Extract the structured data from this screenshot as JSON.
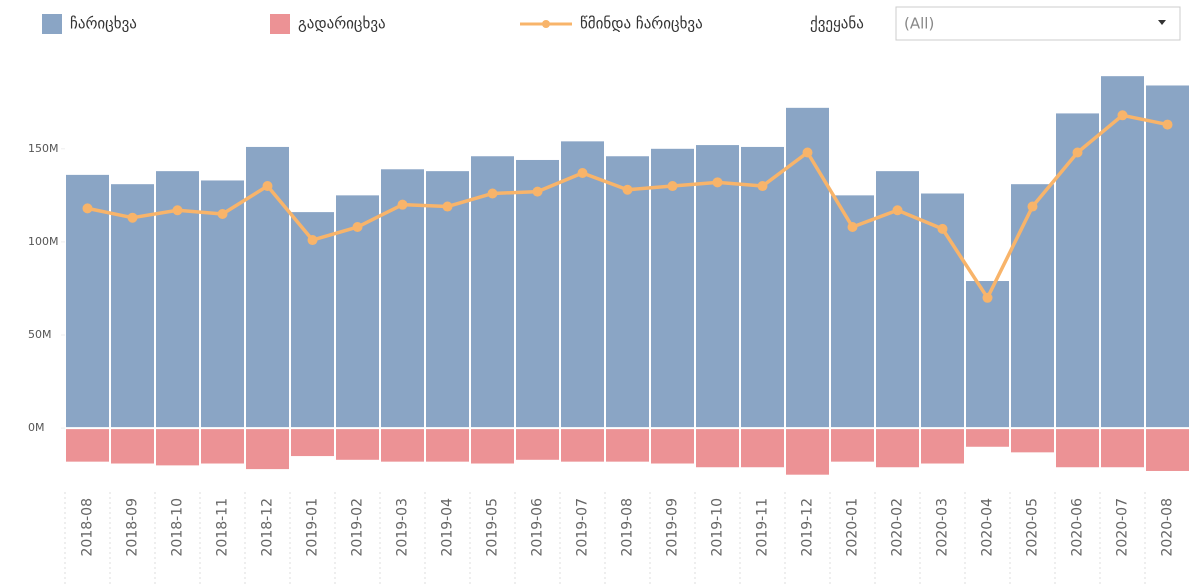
{
  "chart_data": {
    "type": "bar",
    "categories": [
      "2018-08",
      "2018-09",
      "2018-10",
      "2018-11",
      "2018-12",
      "2019-01",
      "2019-02",
      "2019-03",
      "2019-04",
      "2019-05",
      "2019-06",
      "2019-07",
      "2019-08",
      "2019-09",
      "2019-10",
      "2019-11",
      "2019-12",
      "2020-01",
      "2020-02",
      "2020-03",
      "2020-04",
      "2020-05",
      "2020-06",
      "2020-07",
      "2020-08"
    ],
    "series": [
      {
        "name": "ჩარიცხვა",
        "type": "bar",
        "color": "#8aa5c5",
        "values": [
          136,
          131,
          138,
          133,
          151,
          116,
          125,
          139,
          138,
          146,
          144,
          154,
          146,
          150,
          152,
          151,
          172,
          125,
          138,
          126,
          79,
          131,
          169,
          189,
          184
        ]
      },
      {
        "name": "გადარიცხვა",
        "type": "bar",
        "color": "#ec9295",
        "values": [
          -18,
          -19,
          -20,
          -19,
          -22,
          -15,
          -17,
          -18,
          -18,
          -19,
          -17,
          -18,
          -18,
          -19,
          -21,
          -21,
          -25,
          -18,
          -21,
          -19,
          -10,
          -13,
          -21,
          -21,
          -23
        ]
      },
      {
        "name": "წმინდა ჩარიცხვა",
        "type": "line",
        "color": "#f8b46a",
        "values": [
          118,
          113,
          117,
          115,
          130,
          101,
          108,
          120,
          119,
          126,
          127,
          137,
          128,
          130,
          132,
          130,
          148,
          108,
          117,
          107,
          70,
          119,
          148,
          168,
          163
        ]
      }
    ],
    "ylim": [
      -30,
      195
    ],
    "yticks": [
      {
        "value": 0,
        "label": "0M"
      },
      {
        "value": 50,
        "label": "50M"
      },
      {
        "value": 100,
        "label": "100M"
      },
      {
        "value": 150,
        "label": "150M"
      }
    ],
    "filter": {
      "label": "ქვეყანა",
      "value": "(All)"
    }
  }
}
